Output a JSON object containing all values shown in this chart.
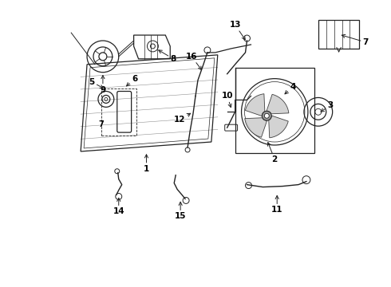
{
  "background_color": "#ffffff",
  "line_color": "#222222",
  "label_color": "#000000",
  "fig_w": 4.9,
  "fig_h": 3.6,
  "dpi": 100,
  "xlim": [
    0,
    490
  ],
  "ylim": [
    0,
    360
  ]
}
